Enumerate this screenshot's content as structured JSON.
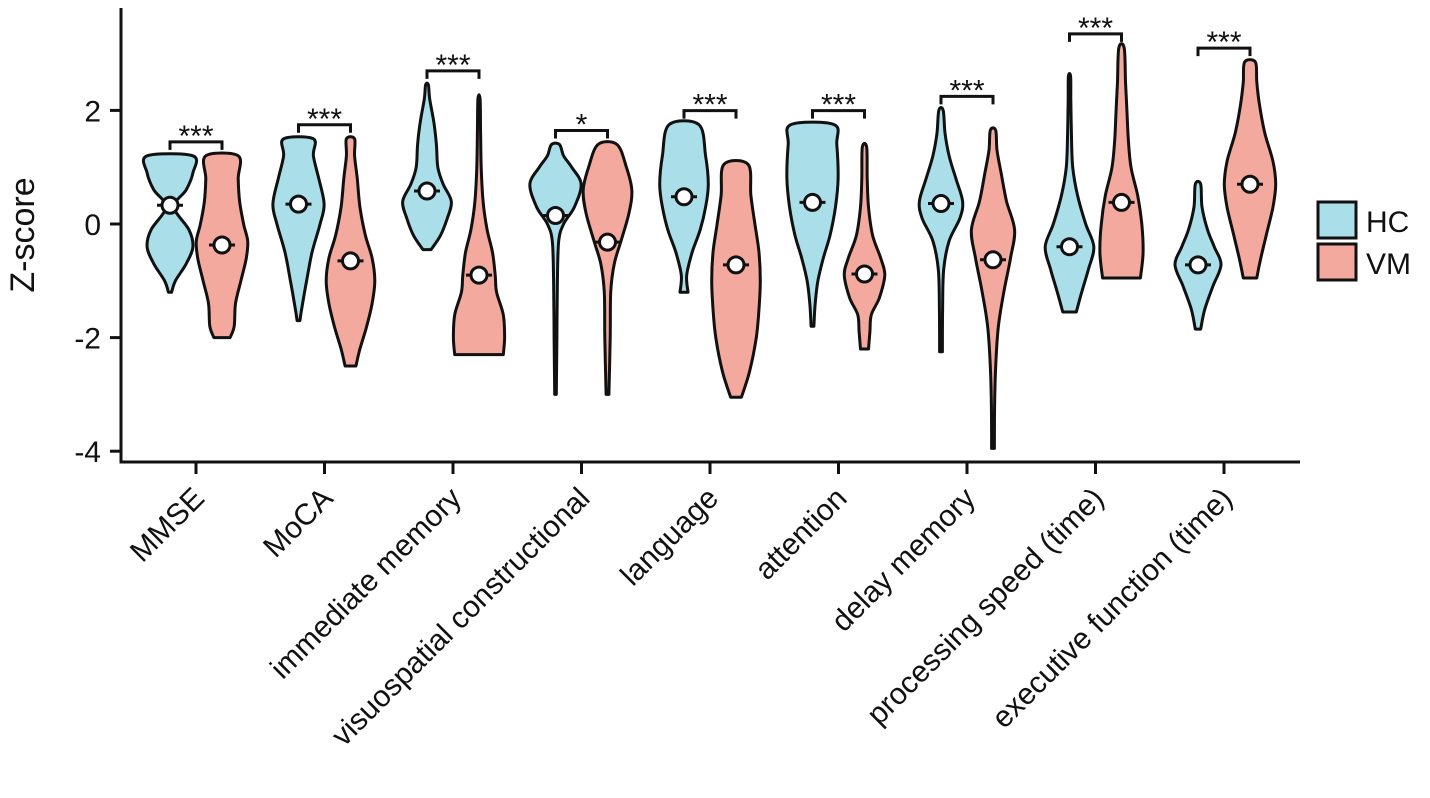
{
  "chart_data": {
    "type": "violin",
    "title": "",
    "xlabel": "",
    "ylabel": "Z-score",
    "ylim": [
      -4.2,
      3.8
    ],
    "yticks": [
      2,
      0,
      -2,
      -4
    ],
    "ytick_labels": [
      "2",
      "0",
      "-2",
      "-4"
    ],
    "legend": {
      "position": "right",
      "entries": [
        {
          "name": "HC",
          "color": "#aadfe9"
        },
        {
          "name": "VM",
          "color": "#f3a99d"
        }
      ]
    },
    "categories": [
      {
        "name": "MMSE",
        "significance": "***",
        "HC": {
          "min": -1.2,
          "max": 1.2,
          "center": 0.33,
          "shape": [
            [
              -1.2,
              0.06
            ],
            [
              -1.0,
              0.2
            ],
            [
              -0.7,
              0.6
            ],
            [
              -0.4,
              0.85
            ],
            [
              -0.1,
              0.7
            ],
            [
              0.3,
              0.15
            ],
            [
              0.6,
              0.6
            ],
            [
              0.9,
              0.85
            ],
            [
              1.2,
              0.85
            ]
          ]
        },
        "VM": {
          "min": -2.0,
          "max": 1.2,
          "center": -0.37,
          "shape": [
            [
              -2.0,
              0.3
            ],
            [
              -1.8,
              0.45
            ],
            [
              -1.4,
              0.5
            ],
            [
              -1.0,
              0.7
            ],
            [
              -0.6,
              0.9
            ],
            [
              -0.3,
              0.95
            ],
            [
              0.0,
              0.8
            ],
            [
              0.4,
              0.65
            ],
            [
              0.8,
              0.6
            ],
            [
              1.2,
              0.6
            ]
          ]
        }
      },
      {
        "name": "MoCA",
        "significance": "***",
        "HC": {
          "min": -1.7,
          "max": 1.5,
          "center": 0.35,
          "shape": [
            [
              -1.7,
              0.05
            ],
            [
              -1.4,
              0.15
            ],
            [
              -1.0,
              0.3
            ],
            [
              -0.5,
              0.5
            ],
            [
              0.0,
              0.8
            ],
            [
              0.35,
              0.95
            ],
            [
              0.8,
              0.75
            ],
            [
              1.2,
              0.55
            ],
            [
              1.5,
              0.55
            ]
          ]
        },
        "VM": {
          "min": -2.5,
          "max": 1.5,
          "center": -0.65,
          "shape": [
            [
              -2.5,
              0.2
            ],
            [
              -2.2,
              0.35
            ],
            [
              -1.8,
              0.6
            ],
            [
              -1.4,
              0.8
            ],
            [
              -1.0,
              0.9
            ],
            [
              -0.6,
              0.8
            ],
            [
              -0.2,
              0.55
            ],
            [
              0.3,
              0.35
            ],
            [
              0.8,
              0.25
            ],
            [
              1.2,
              0.15
            ],
            [
              1.5,
              0.15
            ]
          ]
        }
      },
      {
        "name": "immediate memory",
        "significance": "***",
        "HC": {
          "min": -0.45,
          "max": 2.45,
          "center": 0.58,
          "shape": [
            [
              -0.45,
              0.15
            ],
            [
              -0.2,
              0.5
            ],
            [
              0.1,
              0.75
            ],
            [
              0.4,
              0.9
            ],
            [
              0.7,
              0.6
            ],
            [
              1.0,
              0.4
            ],
            [
              1.4,
              0.35
            ],
            [
              1.8,
              0.25
            ],
            [
              2.2,
              0.1
            ],
            [
              2.45,
              0.05
            ]
          ]
        },
        "VM": {
          "min": -2.3,
          "max": 2.2,
          "center": -0.9,
          "shape": [
            [
              -2.3,
              0.9
            ],
            [
              -2.0,
              0.95
            ],
            [
              -1.6,
              0.9
            ],
            [
              -1.2,
              0.65
            ],
            [
              -0.9,
              0.6
            ],
            [
              -0.5,
              0.5
            ],
            [
              -0.1,
              0.3
            ],
            [
              0.4,
              0.15
            ],
            [
              1.0,
              0.08
            ],
            [
              1.6,
              0.06
            ],
            [
              2.2,
              0.04
            ]
          ]
        }
      },
      {
        "name": "visuospatial constructional",
        "significance": "*",
        "HC": {
          "min": -3.0,
          "max": 1.4,
          "center": 0.15,
          "shape": [
            [
              -3.0,
              0.03
            ],
            [
              -2.0,
              0.05
            ],
            [
              -1.0,
              0.07
            ],
            [
              -0.3,
              0.12
            ],
            [
              0.0,
              0.3
            ],
            [
              0.3,
              0.7
            ],
            [
              0.7,
              0.95
            ],
            [
              1.0,
              0.6
            ],
            [
              1.2,
              0.3
            ],
            [
              1.4,
              0.15
            ]
          ]
        },
        "VM": {
          "min": -3.0,
          "max": 1.4,
          "center": -0.32,
          "shape": [
            [
              -3.0,
              0.05
            ],
            [
              -2.0,
              0.1
            ],
            [
              -1.2,
              0.12
            ],
            [
              -0.7,
              0.25
            ],
            [
              -0.3,
              0.5
            ],
            [
              0.2,
              0.8
            ],
            [
              0.6,
              0.9
            ],
            [
              1.0,
              0.7
            ],
            [
              1.4,
              0.35
            ]
          ]
        }
      },
      {
        "name": "language",
        "significance": "***",
        "HC": {
          "min": -1.2,
          "max": 1.75,
          "center": 0.48,
          "shape": [
            [
              -1.2,
              0.15
            ],
            [
              -0.9,
              0.1
            ],
            [
              -0.5,
              0.3
            ],
            [
              -0.1,
              0.6
            ],
            [
              0.3,
              0.8
            ],
            [
              0.7,
              0.9
            ],
            [
              1.2,
              0.8
            ],
            [
              1.75,
              0.55
            ]
          ]
        },
        "VM": {
          "min": -3.05,
          "max": 1.05,
          "center": -0.72,
          "shape": [
            [
              -3.05,
              0.2
            ],
            [
              -2.6,
              0.5
            ],
            [
              -2.0,
              0.75
            ],
            [
              -1.5,
              0.85
            ],
            [
              -1.0,
              0.9
            ],
            [
              -0.5,
              0.85
            ],
            [
              0.0,
              0.7
            ],
            [
              0.5,
              0.55
            ],
            [
              1.05,
              0.45
            ]
          ]
        }
      },
      {
        "name": "attention",
        "significance": "***",
        "HC": {
          "min": -1.8,
          "max": 1.75,
          "center": 0.38,
          "shape": [
            [
              -1.8,
              0.05
            ],
            [
              -1.4,
              0.1
            ],
            [
              -1.0,
              0.2
            ],
            [
              -0.6,
              0.4
            ],
            [
              -0.2,
              0.65
            ],
            [
              0.3,
              0.85
            ],
            [
              0.8,
              0.95
            ],
            [
              1.4,
              0.9
            ],
            [
              1.75,
              0.8
            ]
          ]
        },
        "VM": {
          "min": -2.2,
          "max": 1.35,
          "center": -0.88,
          "shape": [
            [
              -2.2,
              0.15
            ],
            [
              -1.9,
              0.2
            ],
            [
              -1.6,
              0.25
            ],
            [
              -1.3,
              0.55
            ],
            [
              -0.9,
              0.75
            ],
            [
              -0.6,
              0.6
            ],
            [
              -0.2,
              0.3
            ],
            [
              0.3,
              0.15
            ],
            [
              0.8,
              0.1
            ],
            [
              1.35,
              0.08
            ]
          ]
        }
      },
      {
        "name": "delay memory",
        "significance": "***",
        "HC": {
          "min": -2.25,
          "max": 2.0,
          "center": 0.36,
          "shape": [
            [
              -2.25,
              0.05
            ],
            [
              -1.5,
              0.06
            ],
            [
              -0.8,
              0.1
            ],
            [
              -0.3,
              0.3
            ],
            [
              0.1,
              0.7
            ],
            [
              0.4,
              0.8
            ],
            [
              0.8,
              0.55
            ],
            [
              1.2,
              0.3
            ],
            [
              1.6,
              0.15
            ],
            [
              2.0,
              0.08
            ]
          ]
        },
        "VM": {
          "min": -3.95,
          "max": 1.65,
          "center": -0.63,
          "shape": [
            [
              -3.95,
              0.05
            ],
            [
              -3.2,
              0.06
            ],
            [
              -2.5,
              0.1
            ],
            [
              -1.8,
              0.2
            ],
            [
              -1.2,
              0.4
            ],
            [
              -0.6,
              0.65
            ],
            [
              -0.1,
              0.8
            ],
            [
              0.4,
              0.5
            ],
            [
              0.9,
              0.3
            ],
            [
              1.3,
              0.15
            ],
            [
              1.65,
              0.1
            ]
          ]
        }
      },
      {
        "name": "processing speed (time)",
        "significance": "***",
        "HC": {
          "min": -1.55,
          "max": 2.6,
          "center": -0.4,
          "shape": [
            [
              -1.55,
              0.25
            ],
            [
              -1.2,
              0.45
            ],
            [
              -0.8,
              0.7
            ],
            [
              -0.4,
              0.9
            ],
            [
              0.0,
              0.6
            ],
            [
              0.5,
              0.3
            ],
            [
              1.0,
              0.12
            ],
            [
              1.6,
              0.07
            ],
            [
              2.2,
              0.05
            ],
            [
              2.6,
              0.04
            ]
          ]
        },
        "VM": {
          "min": -0.95,
          "max": 3.1,
          "center": 0.38,
          "shape": [
            [
              -0.95,
              0.7
            ],
            [
              -0.5,
              0.8
            ],
            [
              0.0,
              0.75
            ],
            [
              0.5,
              0.6
            ],
            [
              1.0,
              0.35
            ],
            [
              1.5,
              0.25
            ],
            [
              2.0,
              0.2
            ],
            [
              2.5,
              0.15
            ],
            [
              3.1,
              0.1
            ]
          ]
        }
      },
      {
        "name": "executive function (time)",
        "significance": "***",
        "HC": {
          "min": -1.85,
          "max": 0.7,
          "center": -0.72,
          "shape": [
            [
              -1.85,
              0.1
            ],
            [
              -1.5,
              0.25
            ],
            [
              -1.1,
              0.55
            ],
            [
              -0.72,
              0.85
            ],
            [
              -0.4,
              0.6
            ],
            [
              -0.1,
              0.35
            ],
            [
              0.3,
              0.15
            ],
            [
              0.7,
              0.1
            ]
          ]
        },
        "VM": {
          "min": -0.95,
          "max": 2.85,
          "center": 0.7,
          "shape": [
            [
              -0.95,
              0.25
            ],
            [
              -0.6,
              0.4
            ],
            [
              -0.2,
              0.6
            ],
            [
              0.3,
              0.85
            ],
            [
              0.7,
              0.95
            ],
            [
              1.1,
              0.85
            ],
            [
              1.6,
              0.55
            ],
            [
              2.1,
              0.35
            ],
            [
              2.5,
              0.25
            ],
            [
              2.85,
              0.2
            ]
          ]
        }
      }
    ]
  }
}
